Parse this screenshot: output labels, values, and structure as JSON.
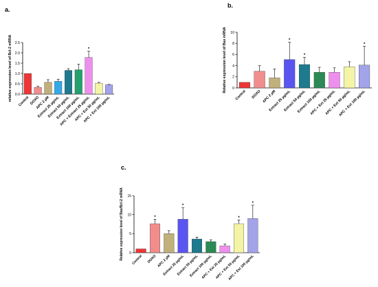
{
  "panel_labels": [
    "a.",
    "b.",
    "c."
  ],
  "chart_data": [
    {
      "type": "bar",
      "panel": "a.",
      "ylabel": "relative expression level of Bcl-2 mRNA",
      "ylim": [
        0,
        2.5
      ],
      "yticks": [
        "0.0",
        "0.5",
        "1.0",
        "1.5",
        "2.0",
        "2.5"
      ],
      "ytick_values": [
        0,
        0.5,
        1.0,
        1.5,
        2.0,
        2.5
      ],
      "categories": [
        "Control",
        "DOXO",
        "APC 2 µM",
        "Extract 25 µg/mL",
        "Extract 50 µg/mL",
        "Extract 100 µg/mL",
        "APC + Extract 25 µg/mL",
        "APC + Ext 50 µg/mL",
        "APC + Ext 100 µg/mL"
      ],
      "values": [
        1.0,
        0.33,
        0.57,
        0.62,
        1.15,
        1.18,
        1.78,
        0.53,
        0.45
      ],
      "errors": [
        0.0,
        0.05,
        0.13,
        0.1,
        0.08,
        0.27,
        0.3,
        0.04,
        0.02
      ],
      "significance": [
        "",
        "",
        "",
        "",
        "",
        "",
        "*",
        "",
        ""
      ],
      "colors": [
        "#f03535",
        "#f28d8d",
        "#c2b07a",
        "#33a9e8",
        "#1d7a8f",
        "#25a070",
        "#ee8fee",
        "#f4f4a6",
        "#a3a3ea"
      ],
      "grid": false
    },
    {
      "type": "bar",
      "panel": "b.",
      "ylabel": "Relative expression level of Bax mRNA",
      "ylim": [
        0,
        10
      ],
      "yticks": [
        "0",
        "2",
        "4",
        "6",
        "8",
        "10"
      ],
      "ytick_values": [
        0,
        2,
        4,
        6,
        8,
        10
      ],
      "categories": [
        "Control",
        "DOXO",
        "APC 2 µM",
        "Extract 25 µg/mL",
        "Extract 50 µg/mL",
        "Extract 100 µg/mL",
        "APC + Ext 25 µg/mL",
        "APC + Ext 50 µg/mL",
        "APC + Ext 100 µg/mL"
      ],
      "values": [
        1.0,
        3.0,
        1.8,
        5.1,
        4.2,
        2.8,
        2.8,
        3.8,
        4.1
      ],
      "errors": [
        0.0,
        1.0,
        1.6,
        3.1,
        1.3,
        0.9,
        0.8,
        0.9,
        3.4
      ],
      "significance": [
        "",
        "",
        "",
        "*",
        "*",
        "",
        "",
        "",
        "*"
      ],
      "colors": [
        "#f03535",
        "#f28d8d",
        "#c2b07a",
        "#5a55f0",
        "#1d7a8f",
        "#2b8a55",
        "#ee8fee",
        "#f4f4a6",
        "#a3a3ea"
      ],
      "grid": false
    },
    {
      "type": "bar",
      "panel": "c.",
      "ylabel": "Relative expression level of Bax/Bcl-2 mRNA",
      "ylim": [
        0,
        15
      ],
      "yticks": [
        "0",
        "5",
        "10",
        "15"
      ],
      "ytick_values": [
        0,
        5,
        10,
        15
      ],
      "categories": [
        "Control",
        "DOXO",
        "APC 2 µM",
        "Extract 25 µg/mL",
        "Extract 50 µg/mL",
        "Extract 100 µg/mL",
        "APC + Ext 25 µg/mL",
        "APC + Ext 50 µg/mL",
        "APC + Ext 100 µg/mL"
      ],
      "values": [
        1.0,
        7.6,
        5.0,
        8.8,
        3.6,
        2.9,
        1.8,
        7.6,
        9.0
      ],
      "errors": [
        0.0,
        1.2,
        0.8,
        3.0,
        0.5,
        0.5,
        0.5,
        1.0,
        3.5
      ],
      "significance": [
        "",
        "*",
        "",
        "*",
        "",
        "",
        "",
        "*",
        "*"
      ],
      "colors": [
        "#f03535",
        "#f28d8d",
        "#c2b07a",
        "#5a55f0",
        "#1d7a8f",
        "#2b8a55",
        "#ee8fee",
        "#f4f4a6",
        "#a3a3ea"
      ],
      "grid": false
    }
  ]
}
